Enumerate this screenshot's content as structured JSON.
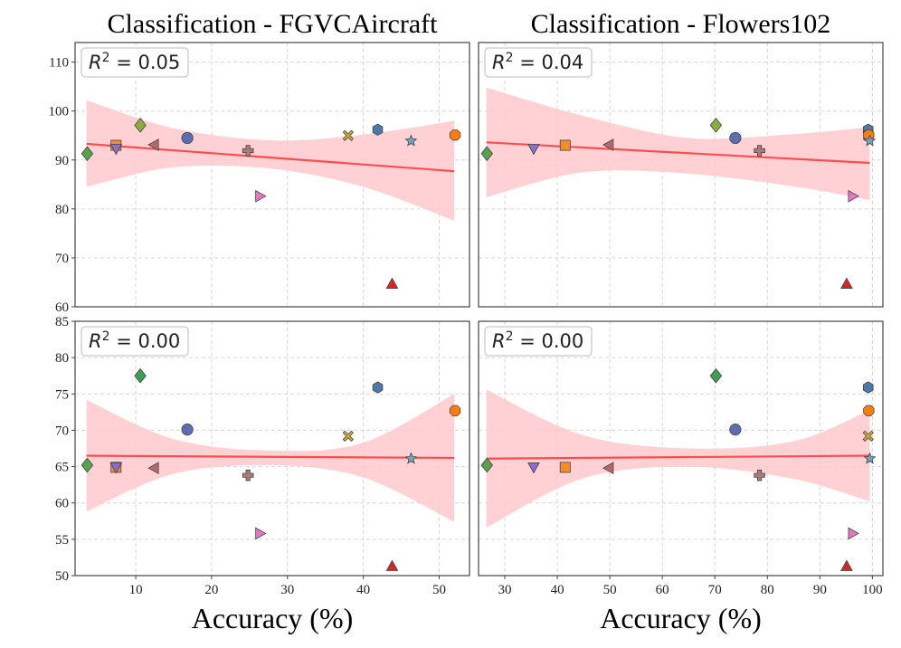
{
  "chart_data": {
    "type": "scatter",
    "xlabel": "Accuracy (%)",
    "columns": [
      {
        "title": "Classification - FGVCAircraft",
        "xlim": [
          2,
          54
        ],
        "xticks": [
          10,
          20,
          30,
          40,
          50
        ]
      },
      {
        "title": "Classification - Flowers102",
        "xlim": [
          25,
          102
        ],
        "xticks": [
          30,
          40,
          50,
          60,
          70,
          80,
          90,
          100
        ]
      }
    ],
    "rows": [
      {
        "ylim": [
          60,
          114
        ],
        "yticks": [
          60,
          70,
          80,
          90,
          100,
          110
        ]
      },
      {
        "ylim": [
          50,
          85
        ],
        "yticks": [
          50,
          55,
          60,
          65,
          70,
          75,
          80,
          85
        ]
      }
    ],
    "panels": [
      {
        "id": "top-left",
        "row": 0,
        "col": 0,
        "r2_label": "0.05",
        "fit": {
          "x": [
            3.5,
            52
          ],
          "y": [
            93.3,
            87.7
          ]
        },
        "ci_upper": [
          [
            3.5,
            102.2
          ],
          [
            15,
            96.5
          ],
          [
            28,
            94.0
          ],
          [
            40,
            95.2
          ],
          [
            52,
            98.0
          ]
        ],
        "ci_lower": [
          [
            3.5,
            84.5
          ],
          [
            15,
            88.5
          ],
          [
            28,
            88.2
          ],
          [
            40,
            84.5
          ],
          [
            52,
            77.6
          ]
        ],
        "points": [
          {
            "marker": "diamond",
            "color": "#59a14f",
            "x": 3.6,
            "y": 91.3
          },
          {
            "marker": "square",
            "color": "#f28e2b",
            "x": 7.4,
            "y": 93.0
          },
          {
            "marker": "triangle-down",
            "color": "#8e6cc9",
            "x": 7.4,
            "y": 92.3
          },
          {
            "marker": "diamond",
            "color": "#8cad3e",
            "x": 10.6,
            "y": 97.1
          },
          {
            "marker": "triangle-left",
            "color": "#b5676e",
            "x": 12.4,
            "y": 93.1
          },
          {
            "marker": "circle",
            "color": "#5c6eb0",
            "x": 16.8,
            "y": 94.5
          },
          {
            "marker": "plus",
            "color": "#a67c7c",
            "x": 24.8,
            "y": 91.9
          },
          {
            "marker": "triangle-right",
            "color": "#e377c2",
            "x": 26.4,
            "y": 82.6
          },
          {
            "marker": "x",
            "color": "#d4a93a",
            "x": 38.0,
            "y": 95.0
          },
          {
            "marker": "hexagon",
            "color": "#4e79a7",
            "x": 41.9,
            "y": 96.2
          },
          {
            "marker": "triangle-up",
            "color": "#d62728",
            "x": 43.8,
            "y": 64.7
          },
          {
            "marker": "star",
            "color": "#76a2c6",
            "x": 46.3,
            "y": 93.9
          },
          {
            "marker": "octagon",
            "color": "#ff7f0e",
            "x": 52.1,
            "y": 95.1
          }
        ]
      },
      {
        "id": "top-right",
        "row": 0,
        "col": 1,
        "r2_label": "0.04",
        "fit": {
          "x": [
            26.5,
            99.5
          ],
          "y": [
            93.6,
            89.4
          ]
        },
        "ci_upper": [
          [
            26.5,
            104.8
          ],
          [
            45,
            99.0
          ],
          [
            65,
            94.5
          ],
          [
            85,
            95.3
          ],
          [
            99.5,
            96.7
          ]
        ],
        "ci_lower": [
          [
            26.5,
            82.4
          ],
          [
            45,
            87.5
          ],
          [
            65,
            87.2
          ],
          [
            85,
            84.6
          ],
          [
            99.5,
            81.8
          ]
        ],
        "points": [
          {
            "marker": "diamond",
            "color": "#59a14f",
            "x": 26.6,
            "y": 91.3
          },
          {
            "marker": "triangle-down",
            "color": "#8e6cc9",
            "x": 35.5,
            "y": 92.3
          },
          {
            "marker": "square",
            "color": "#f28e2b",
            "x": 41.5,
            "y": 93.0
          },
          {
            "marker": "triangle-left",
            "color": "#b5676e",
            "x": 49.8,
            "y": 93.1
          },
          {
            "marker": "diamond",
            "color": "#8cad3e",
            "x": 70.2,
            "y": 97.1
          },
          {
            "marker": "circle",
            "color": "#5c6eb0",
            "x": 73.9,
            "y": 94.5
          },
          {
            "marker": "plus",
            "color": "#a67c7c",
            "x": 78.5,
            "y": 91.9
          },
          {
            "marker": "triangle-up",
            "color": "#d62728",
            "x": 95.1,
            "y": 64.7
          },
          {
            "marker": "triangle-right",
            "color": "#e377c2",
            "x": 96.3,
            "y": 82.6
          },
          {
            "marker": "hexagon",
            "color": "#4e79a7",
            "x": 99.2,
            "y": 96.2
          },
          {
            "marker": "x",
            "color": "#d4a93a",
            "x": 99.2,
            "y": 95.0
          },
          {
            "marker": "octagon",
            "color": "#ff7f0e",
            "x": 99.3,
            "y": 95.1
          },
          {
            "marker": "star",
            "color": "#76a2c6",
            "x": 99.5,
            "y": 93.9
          }
        ]
      },
      {
        "id": "bottom-left",
        "row": 1,
        "col": 0,
        "r2_label": "0.00",
        "fit": {
          "x": [
            3.5,
            52
          ],
          "y": [
            66.5,
            66.2
          ]
        },
        "ci_upper": [
          [
            3.5,
            74.2
          ],
          [
            15,
            68.8
          ],
          [
            28,
            67.2
          ],
          [
            40,
            68.3
          ],
          [
            52,
            75.0
          ]
        ],
        "ci_lower": [
          [
            3.5,
            58.8
          ],
          [
            15,
            64.0
          ],
          [
            28,
            65.2
          ],
          [
            40,
            63.5
          ],
          [
            52,
            57.4
          ]
        ],
        "points": [
          {
            "marker": "diamond",
            "color": "#59a14f",
            "x": 3.6,
            "y": 65.2
          },
          {
            "marker": "square",
            "color": "#f28e2b",
            "x": 7.4,
            "y": 64.9
          },
          {
            "marker": "triangle-down",
            "color": "#8e6cc9",
            "x": 7.4,
            "y": 64.9
          },
          {
            "marker": "diamond",
            "color": "#3f9d54",
            "x": 10.6,
            "y": 77.5
          },
          {
            "marker": "triangle-left",
            "color": "#b5676e",
            "x": 12.4,
            "y": 64.8
          },
          {
            "marker": "circle",
            "color": "#5c6eb0",
            "x": 16.8,
            "y": 70.1
          },
          {
            "marker": "plus",
            "color": "#a67c7c",
            "x": 24.8,
            "y": 63.8
          },
          {
            "marker": "triangle-right",
            "color": "#e377c2",
            "x": 26.4,
            "y": 55.8
          },
          {
            "marker": "x",
            "color": "#d4a93a",
            "x": 38.0,
            "y": 69.2
          },
          {
            "marker": "hexagon",
            "color": "#4e79a7",
            "x": 41.9,
            "y": 75.9
          },
          {
            "marker": "triangle-up",
            "color": "#d62728",
            "x": 43.8,
            "y": 51.3
          },
          {
            "marker": "star",
            "color": "#76a2c6",
            "x": 46.3,
            "y": 66.1
          },
          {
            "marker": "octagon",
            "color": "#ff7f0e",
            "x": 52.1,
            "y": 72.7
          }
        ]
      },
      {
        "id": "bottom-right",
        "row": 1,
        "col": 1,
        "r2_label": "0.00",
        "fit": {
          "x": [
            26.5,
            99.5
          ],
          "y": [
            66.1,
            66.5
          ]
        },
        "ci_upper": [
          [
            26.5,
            75.6
          ],
          [
            45,
            69.3
          ],
          [
            65,
            67.5
          ],
          [
            85,
            68.5
          ],
          [
            99.5,
            72.8
          ]
        ],
        "ci_lower": [
          [
            26.5,
            56.6
          ],
          [
            45,
            63.4
          ],
          [
            65,
            65.0
          ],
          [
            85,
            63.3
          ],
          [
            99.5,
            60.2
          ]
        ],
        "points": [
          {
            "marker": "diamond",
            "color": "#59a14f",
            "x": 26.6,
            "y": 65.2
          },
          {
            "marker": "triangle-down",
            "color": "#8e6cc9",
            "x": 35.5,
            "y": 64.9
          },
          {
            "marker": "square",
            "color": "#f28e2b",
            "x": 41.5,
            "y": 64.9
          },
          {
            "marker": "triangle-left",
            "color": "#b5676e",
            "x": 49.8,
            "y": 64.8
          },
          {
            "marker": "diamond",
            "color": "#3f9d54",
            "x": 70.2,
            "y": 77.5
          },
          {
            "marker": "circle",
            "color": "#5c6eb0",
            "x": 73.9,
            "y": 70.1
          },
          {
            "marker": "plus",
            "color": "#a67c7c",
            "x": 78.5,
            "y": 63.8
          },
          {
            "marker": "triangle-up",
            "color": "#d62728",
            "x": 95.1,
            "y": 51.3
          },
          {
            "marker": "triangle-right",
            "color": "#e377c2",
            "x": 96.3,
            "y": 55.8
          },
          {
            "marker": "hexagon",
            "color": "#4e79a7",
            "x": 99.2,
            "y": 75.9
          },
          {
            "marker": "x",
            "color": "#d4a93a",
            "x": 99.2,
            "y": 69.2
          },
          {
            "marker": "octagon",
            "color": "#ff7f0e",
            "x": 99.3,
            "y": 72.7
          },
          {
            "marker": "star",
            "color": "#76a2c6",
            "x": 99.5,
            "y": 66.1
          }
        ]
      }
    ]
  },
  "colors": {
    "fit_line": "#ff4d4d",
    "ci_band": "#ffc9cc",
    "grid": "#d6d6d6",
    "spine": "#444444",
    "marker_edge": "#444444"
  }
}
